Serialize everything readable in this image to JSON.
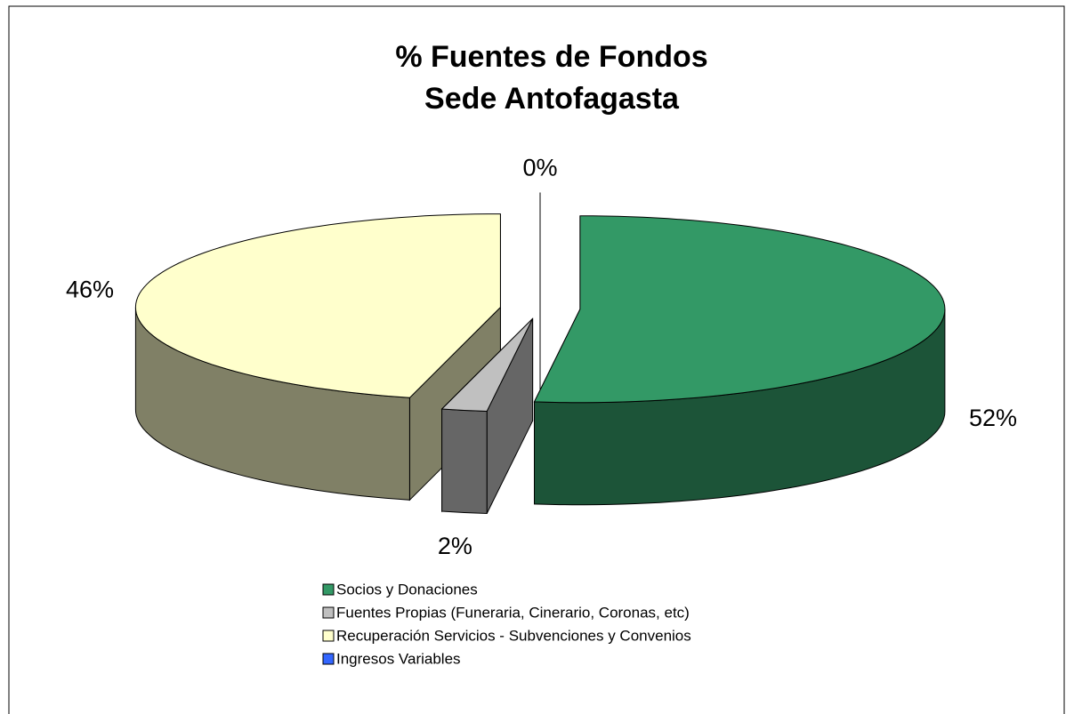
{
  "chart_data": {
    "type": "pie",
    "title": [
      "% Fuentes de Fondos",
      "Sede Antofagasta"
    ],
    "categories": [
      "Socios y Donaciones",
      "Fuentes Propias (Funeraria, Cinerario, Coronas, etc)",
      "Recuperación Servicios - Subvenciones y Convenios",
      "Ingresos Variables"
    ],
    "values": [
      52,
      2,
      46,
      0
    ],
    "value_labels": [
      "52%",
      "2%",
      "46%",
      "0%"
    ],
    "colors": [
      "#339966",
      "#c0c0c0",
      "#ffffcc",
      "#3366ff"
    ],
    "legend": "bottom"
  }
}
